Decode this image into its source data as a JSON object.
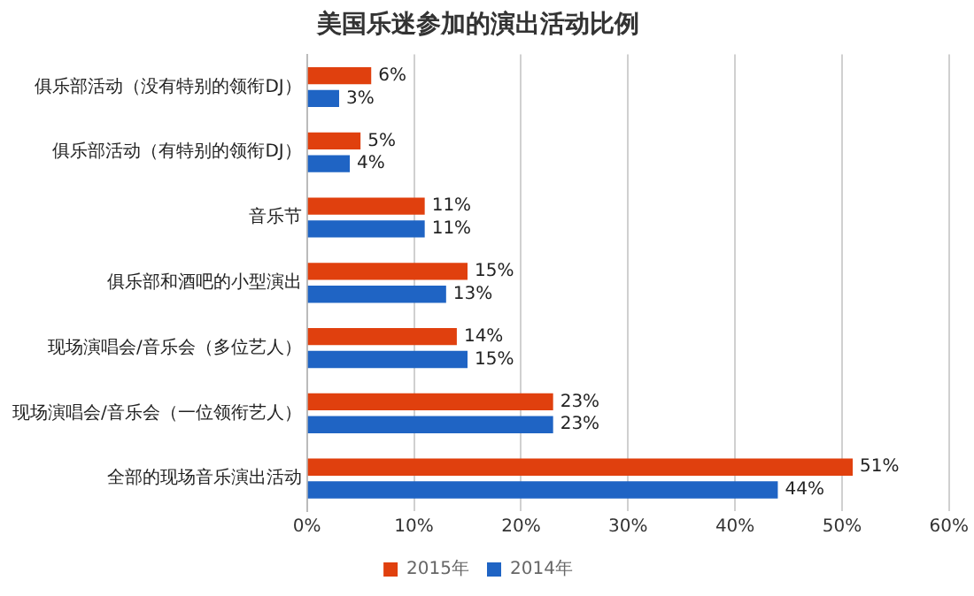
{
  "chart_data": {
    "type": "bar",
    "orientation": "horizontal",
    "title": "美国乐迷参加的演出活动比例",
    "categories": [
      "俱乐部活动（没有特别的领衔DJ）",
      "俱乐部活动（有特别的领衔DJ）",
      "音乐节",
      "俱乐部和酒吧的小型演出",
      "现场演唱会/音乐会（多位艺人）",
      "现场演唱会/音乐会（一位领衔艺人）",
      "全部的现场音乐演出活动"
    ],
    "series": [
      {
        "name": "2015年",
        "color": "#e0400e",
        "values": [
          6,
          5,
          11,
          15,
          14,
          23,
          51
        ],
        "value_labels": [
          "6%",
          "5%",
          "11%",
          "15%",
          "14%",
          "23%",
          "51%"
        ]
      },
      {
        "name": "2014年",
        "color": "#1f64c4",
        "values": [
          3,
          4,
          11,
          13,
          15,
          23,
          44
        ],
        "value_labels": [
          "3%",
          "4%",
          "11%",
          "13%",
          "15%",
          "23%",
          "44%"
        ]
      }
    ],
    "xlim": [
      0,
      60
    ],
    "xticks": [
      {
        "value": 0,
        "label": "0%"
      },
      {
        "value": 10,
        "label": "10%"
      },
      {
        "value": 20,
        "label": "20%"
      },
      {
        "value": 30,
        "label": "30%"
      },
      {
        "value": 40,
        "label": "40%"
      },
      {
        "value": 50,
        "label": "50%"
      },
      {
        "value": 60,
        "label": "60%"
      }
    ],
    "grid": "x",
    "legend": "bottom"
  }
}
